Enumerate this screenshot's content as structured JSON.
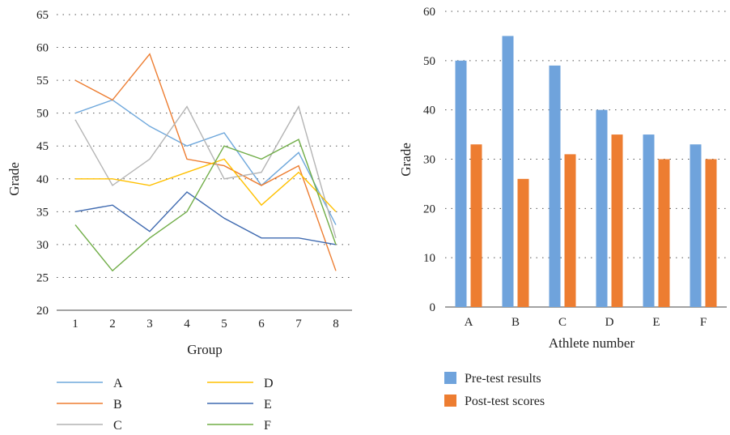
{
  "chart_data": [
    {
      "type": "line",
      "xlabel": "Group",
      "ylabel": "Grade",
      "x": [
        1,
        2,
        3,
        4,
        5,
        6,
        7,
        8
      ],
      "xticks": [
        "1",
        "2",
        "3",
        "4",
        "5",
        "6",
        "7",
        "8"
      ],
      "ylim": [
        20,
        65
      ],
      "yticks": [
        "20",
        "25",
        "30",
        "35",
        "40",
        "45",
        "50",
        "55",
        "60",
        "65"
      ],
      "grid": "horizontal dotted",
      "legend_placement": "bottom",
      "series": [
        {
          "name": "A",
          "color": "#6fa8dc",
          "values": [
            50,
            52,
            48,
            45,
            47,
            39,
            44,
            33
          ]
        },
        {
          "name": "B",
          "color": "#ed7d31",
          "values": [
            55,
            52,
            59,
            43,
            42,
            39,
            42,
            26
          ]
        },
        {
          "name": "C",
          "color": "#b4b4b4",
          "values": [
            49,
            39,
            43,
            51,
            40,
            41,
            51,
            31
          ]
        },
        {
          "name": "D",
          "color": "#ffc000",
          "values": [
            40,
            40,
            39,
            41,
            43,
            36,
            41,
            35
          ]
        },
        {
          "name": "E",
          "color": "#3f6ab0",
          "values": [
            35,
            36,
            32,
            38,
            34,
            31,
            31,
            30
          ]
        },
        {
          "name": "F",
          "color": "#70ad47",
          "values": [
            33,
            26,
            31,
            35,
            45,
            43,
            46,
            30
          ]
        }
      ]
    },
    {
      "type": "bar",
      "xlabel": "Athlete number",
      "ylabel": "Grade",
      "categories": [
        "A",
        "B",
        "C",
        "D",
        "E",
        "F"
      ],
      "ylim": [
        0,
        60
      ],
      "yticks": [
        "0",
        "10",
        "20",
        "30",
        "40",
        "50",
        "60"
      ],
      "grid": "horizontal dotted",
      "legend_placement": "bottom",
      "series": [
        {
          "name": "Pre-test results",
          "color": "#6fa3dc",
          "values": [
            50,
            55,
            49,
            40,
            35,
            33
          ]
        },
        {
          "name": "Post-test scores",
          "color": "#ed7d31",
          "values": [
            33,
            26,
            31,
            35,
            30,
            30
          ]
        }
      ]
    }
  ]
}
